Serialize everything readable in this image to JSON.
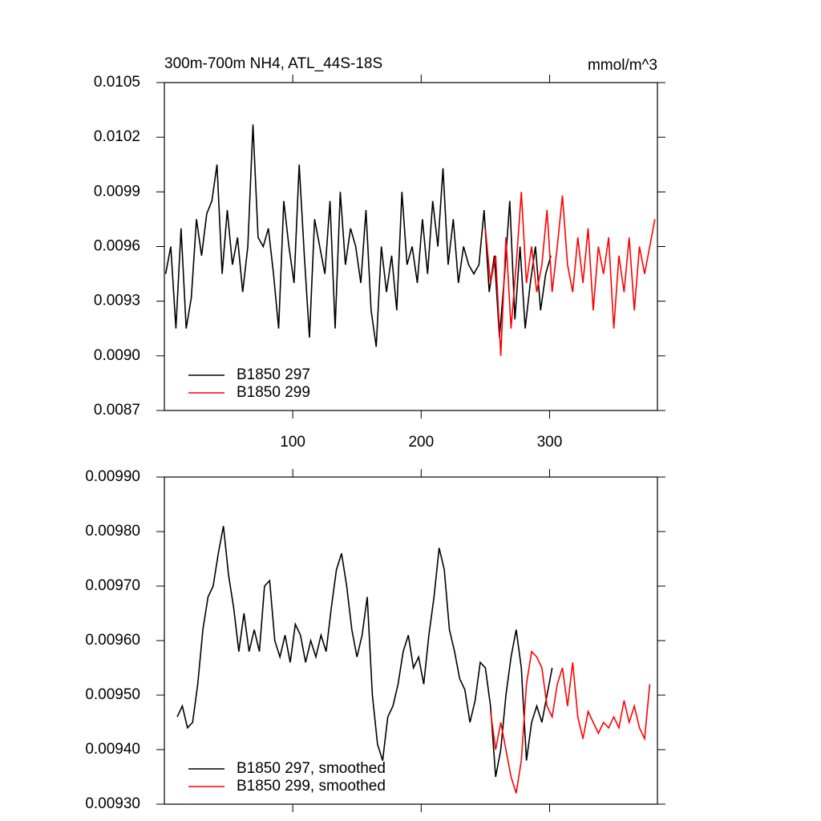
{
  "chart_data": [
    {
      "type": "line",
      "title": "300m-700m NH4, ATL_44S-18S",
      "unit": "mmol/m^3",
      "xlim": [
        0,
        384
      ],
      "xticks": [
        100,
        200,
        300
      ],
      "show_xtick_labels": true,
      "ylim": [
        0.0087,
        0.0105
      ],
      "yticks": [
        0.0087,
        {
          "value": 0.009,
          "label": "0.0090"
        },
        0.0093,
        0.0096,
        0.0099,
        0.0102,
        0.0105
      ],
      "legend": "lower left",
      "series": [
        {
          "name": "B1850 297",
          "color": "#000000",
          "x": [
            1,
            5,
            9,
            13,
            17,
            21,
            25,
            29,
            33,
            37,
            41,
            45,
            49,
            53,
            57,
            61,
            65,
            69,
            73,
            77,
            81,
            85,
            89,
            93,
            97,
            101,
            105,
            109,
            113,
            117,
            121,
            125,
            129,
            133,
            137,
            141,
            145,
            149,
            153,
            157,
            161,
            165,
            169,
            173,
            177,
            181,
            185,
            189,
            193,
            197,
            201,
            205,
            209,
            213,
            217,
            221,
            225,
            229,
            233,
            237,
            241,
            245,
            249,
            253,
            257,
            261,
            265,
            269,
            273,
            277,
            281,
            285,
            289,
            293,
            297,
            301
          ],
          "values": [
            0.00945,
            0.0096,
            0.00915,
            0.0097,
            0.00915,
            0.00932,
            0.00975,
            0.00955,
            0.00978,
            0.00985,
            0.01005,
            0.00945,
            0.0098,
            0.0095,
            0.00965,
            0.00935,
            0.0096,
            0.01027,
            0.00965,
            0.0096,
            0.0097,
            0.00945,
            0.00915,
            0.00985,
            0.0096,
            0.0094,
            0.01005,
            0.00955,
            0.0091,
            0.00975,
            0.0096,
            0.00945,
            0.00985,
            0.00915,
            0.0099,
            0.0095,
            0.0097,
            0.0096,
            0.0094,
            0.0098,
            0.00925,
            0.00905,
            0.0096,
            0.00935,
            0.00955,
            0.00925,
            0.0099,
            0.0095,
            0.0096,
            0.0094,
            0.00975,
            0.00945,
            0.00985,
            0.0096,
            0.01003,
            0.0095,
            0.00975,
            0.0094,
            0.0096,
            0.0095,
            0.00945,
            0.0095,
            0.0098,
            0.00935,
            0.00955,
            0.0091,
            0.00945,
            0.00985,
            0.0092,
            0.0096,
            0.00915,
            0.0094,
            0.0096,
            0.00925,
            0.00945,
            0.00955
          ]
        },
        {
          "name": "B1850 299",
          "color": "#ff0000",
          "x": [
            250,
            254,
            258,
            262,
            266,
            270,
            274,
            278,
            282,
            286,
            290,
            294,
            298,
            302,
            306,
            310,
            314,
            318,
            322,
            326,
            330,
            334,
            338,
            342,
            346,
            350,
            354,
            358,
            362,
            366,
            370,
            374,
            378,
            382
          ],
          "values": [
            0.0097,
            0.0094,
            0.00955,
            0.009,
            0.00965,
            0.00915,
            0.0095,
            0.0099,
            0.0094,
            0.0096,
            0.00935,
            0.0095,
            0.0098,
            0.00935,
            0.0096,
            0.00988,
            0.0095,
            0.00935,
            0.00965,
            0.0094,
            0.0097,
            0.00925,
            0.0096,
            0.00945,
            0.00965,
            0.00915,
            0.00955,
            0.00935,
            0.00965,
            0.00925,
            0.0096,
            0.00945,
            0.0096,
            0.00975
          ]
        }
      ]
    },
    {
      "type": "line",
      "xlim": [
        0,
        384
      ],
      "xticks": [
        100,
        200,
        300
      ],
      "show_xtick_labels": false,
      "ylim": [
        0.0093,
        0.0099
      ],
      "yticks": [
        {
          "value": 0.0093,
          "label": "0.00930"
        },
        {
          "value": 0.0094,
          "label": "0.00940"
        },
        {
          "value": 0.0095,
          "label": "0.00950"
        },
        {
          "value": 0.0096,
          "label": "0.00960"
        },
        {
          "value": 0.0097,
          "label": "0.00970"
        },
        {
          "value": 0.0098,
          "label": "0.00980"
        },
        {
          "value": 0.0099,
          "label": "0.00990"
        }
      ],
      "legend": "lower left",
      "series": [
        {
          "name": "B1850 297, smoothed",
          "color": "#000000",
          "x": [
            10,
            14,
            18,
            22,
            26,
            30,
            34,
            38,
            42,
            46,
            50,
            54,
            58,
            62,
            66,
            70,
            74,
            78,
            82,
            86,
            90,
            94,
            98,
            102,
            106,
            110,
            114,
            118,
            122,
            126,
            130,
            134,
            138,
            142,
            146,
            150,
            154,
            158,
            162,
            166,
            170,
            174,
            178,
            182,
            186,
            190,
            194,
            198,
            202,
            206,
            210,
            214,
            218,
            222,
            226,
            230,
            234,
            238,
            242,
            246,
            250,
            254,
            258,
            262,
            266,
            270,
            274,
            278,
            282,
            286,
            290,
            294,
            298,
            302
          ],
          "values": [
            0.00946,
            0.00948,
            0.00944,
            0.00945,
            0.00952,
            0.00962,
            0.00968,
            0.0097,
            0.00976,
            0.00981,
            0.00972,
            0.00966,
            0.00958,
            0.00965,
            0.00958,
            0.00962,
            0.00958,
            0.0097,
            0.00971,
            0.0096,
            0.00957,
            0.00961,
            0.00956,
            0.00963,
            0.00961,
            0.00956,
            0.0096,
            0.00957,
            0.00961,
            0.00958,
            0.00966,
            0.00973,
            0.00976,
            0.0097,
            0.00962,
            0.00957,
            0.00961,
            0.00968,
            0.0095,
            0.00941,
            0.00938,
            0.00946,
            0.00948,
            0.00952,
            0.00958,
            0.00961,
            0.00955,
            0.00957,
            0.00952,
            0.00961,
            0.00968,
            0.00977,
            0.00973,
            0.00962,
            0.00958,
            0.00953,
            0.00951,
            0.00945,
            0.00949,
            0.00956,
            0.00955,
            0.00948,
            0.00935,
            0.0094,
            0.0095,
            0.00957,
            0.00962,
            0.00955,
            0.00938,
            0.00945,
            0.00948,
            0.00945,
            0.0095,
            0.00955
          ]
        },
        {
          "name": "B1850 299, smoothed",
          "color": "#ff0000",
          "x": [
            254,
            258,
            262,
            266,
            270,
            274,
            278,
            282,
            286,
            290,
            294,
            298,
            302,
            306,
            310,
            314,
            318,
            322,
            326,
            330,
            334,
            338,
            342,
            346,
            350,
            354,
            358,
            362,
            366,
            370,
            374,
            378
          ],
          "values": [
            0.00947,
            0.0094,
            0.00945,
            0.0094,
            0.00935,
            0.00932,
            0.00938,
            0.00952,
            0.00958,
            0.00957,
            0.00955,
            0.00948,
            0.00946,
            0.00952,
            0.00955,
            0.00948,
            0.00956,
            0.00946,
            0.00942,
            0.00947,
            0.00945,
            0.00943,
            0.00945,
            0.00944,
            0.00946,
            0.00944,
            0.00949,
            0.00945,
            0.00948,
            0.00944,
            0.00942,
            0.00952
          ]
        }
      ]
    }
  ]
}
